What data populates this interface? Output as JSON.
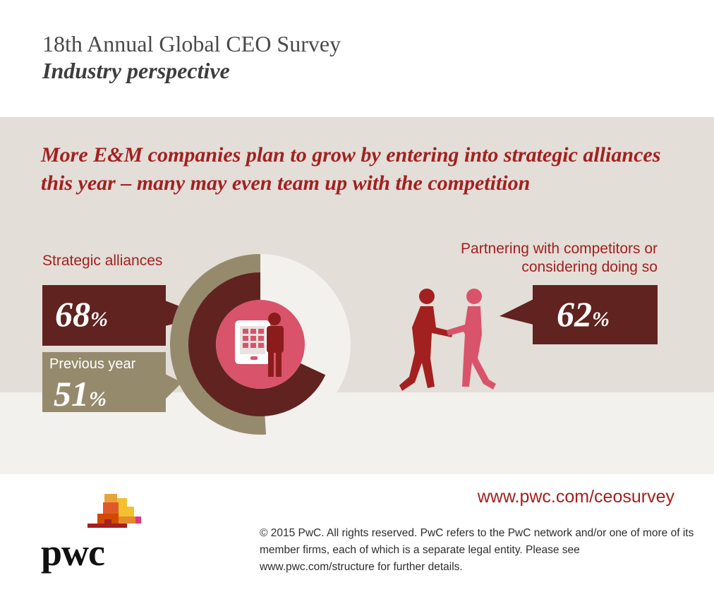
{
  "header": {
    "title": "18th Annual Global CEO Survey",
    "subtitle": "Industry perspective"
  },
  "headline": "More E&M companies plan to grow by entering into strategic alliances this year – many may even team up with the competition",
  "strategic_alliances": {
    "label": "Strategic alliances",
    "current_value": "68",
    "previous_label": "Previous year",
    "previous_value": "51",
    "percent_sign": "%",
    "current_fraction": 0.68,
    "previous_fraction": 0.51
  },
  "partnering": {
    "label": "Partnering with competitors or considering doing so",
    "value": "62",
    "percent_sign": "%"
  },
  "footer": {
    "url": "www.pwc.com/ceosurvey",
    "legal": "© 2015 PwC. All rights reserved. PwC refers to the PwC network and/or one of more of its member firms, each of which is a separate legal entity. Please see www.pwc.com/structure for further details.",
    "logo_text": "pwc"
  },
  "colors": {
    "accent_red": "#a32020",
    "dark_maroon": "#602320",
    "khaki": "#968a6d",
    "pink": "#d9536a",
    "band_bg": "#e3ded7"
  },
  "icons": [
    "tablet-person-icon",
    "handshake-icon",
    "pwc-logo-icon"
  ]
}
